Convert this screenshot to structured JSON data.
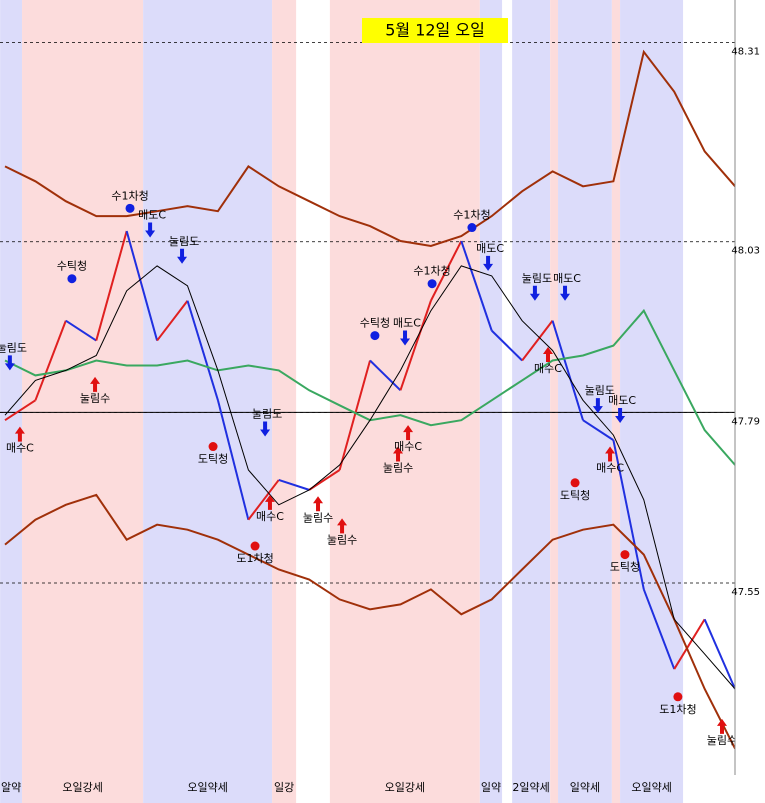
{
  "chart_data": {
    "type": "line",
    "title": "5월 12일 오일",
    "categories": [
      null,
      null,
      null,
      null,
      null,
      null,
      null,
      null,
      null,
      null,
      null,
      null,
      null,
      null,
      null,
      null,
      null,
      null,
      null,
      null,
      null,
      null,
      null,
      null,
      null
    ],
    "ylim": [
      47.28,
      48.37
    ],
    "yticks": [
      48.31,
      48.03,
      47.79,
      47.55
    ],
    "ref_line": 47.79,
    "series": [
      {
        "name": "price",
        "up_color": "#e02020",
        "down_color": "#2030e0",
        "values": [
          47.779,
          47.807,
          47.919,
          47.891,
          48.045,
          47.891,
          47.947,
          47.807,
          47.639,
          47.695,
          47.681,
          47.709,
          47.863,
          47.821,
          47.947,
          48.031,
          47.905,
          47.863,
          47.919,
          47.779,
          47.751,
          47.541,
          47.429,
          47.499,
          47.401
        ]
      },
      {
        "name": "upper",
        "color": "#a0300a",
        "values": [
          48.136,
          48.115,
          48.087,
          48.066,
          48.066,
          48.073,
          48.08,
          48.073,
          48.136,
          48.108,
          48.087,
          48.066,
          48.052,
          48.031,
          48.024,
          48.038,
          48.066,
          48.101,
          48.129,
          48.108,
          48.115,
          48.297,
          48.241,
          48.157,
          48.108
        ]
      },
      {
        "name": "lower",
        "color": "#a0300a",
        "values": [
          47.604,
          47.639,
          47.66,
          47.674,
          47.611,
          47.632,
          47.625,
          47.611,
          47.59,
          47.569,
          47.555,
          47.527,
          47.513,
          47.52,
          47.541,
          47.506,
          47.527,
          47.569,
          47.611,
          47.625,
          47.632,
          47.59,
          47.499,
          47.401,
          47.317
        ]
      },
      {
        "name": "green",
        "color": "#3aa860",
        "values": [
          47.863,
          47.842,
          47.849,
          47.863,
          47.856,
          47.856,
          47.863,
          47.849,
          47.856,
          47.849,
          47.821,
          47.8,
          47.779,
          47.786,
          47.772,
          47.779,
          47.807,
          47.835,
          47.863,
          47.87,
          47.884,
          47.933,
          47.849,
          47.765,
          47.716
        ]
      },
      {
        "name": "black",
        "color": "#000000",
        "values": [
          47.786,
          47.835,
          47.849,
          47.87,
          47.961,
          47.996,
          47.968,
          47.849,
          47.709,
          47.66,
          47.681,
          47.716,
          47.779,
          47.849,
          47.933,
          47.996,
          47.982,
          47.919,
          47.877,
          47.807,
          47.758,
          47.667,
          47.499,
          47.45,
          47.401
        ]
      }
    ],
    "bands": [
      {
        "start": -0.16,
        "end": 0.56,
        "color": "#dcdcfa",
        "label": "알약"
      },
      {
        "start": 0.56,
        "end": 4.54,
        "color": "#fcdcdc",
        "label": "오일강세"
      },
      {
        "start": 4.54,
        "end": 8.78,
        "color": "#dcdcfa",
        "label": "오일약세"
      },
      {
        "start": 8.78,
        "end": 9.57,
        "color": "#fcdcdc",
        "label": "일강"
      },
      {
        "start": 10.68,
        "end": 15.61,
        "color": "#fcdcdc",
        "label": "오일강세"
      },
      {
        "start": 15.61,
        "end": 16.34,
        "color": "#dcdcfa",
        "label": "일약"
      },
      {
        "start": 16.67,
        "end": 17.92,
        "color": "#dcdcfa",
        "label": "2일약세"
      },
      {
        "start": 17.92,
        "end": 18.18,
        "color": "#fcdcdc"
      },
      {
        "start": 18.18,
        "end": 19.95,
        "color": "#dcdcfa",
        "label": "일약세"
      },
      {
        "start": 19.95,
        "end": 20.22,
        "color": "#fcdcdc"
      },
      {
        "start": 20.22,
        "end": 22.29,
        "color": "#dcdcfa",
        "label": "오일약세"
      }
    ],
    "annotations": [
      {
        "text": "수1차청",
        "x": 4.11,
        "value": 48.077,
        "marker": "dot-blue"
      },
      {
        "text": "수틱청",
        "x": 2.2,
        "value": 47.978,
        "marker": "dot-blue"
      },
      {
        "text": "매도C",
        "x": 4.77,
        "value": 48.036,
        "marker": "down"
      },
      {
        "text": "눌림도",
        "x": 5.82,
        "value": 47.999,
        "marker": "down"
      },
      {
        "text": "눌림수",
        "x": 2.96,
        "value": 47.84,
        "marker": "up"
      },
      {
        "text": "매수C",
        "x": 0.49,
        "value": 47.77,
        "marker": "up"
      },
      {
        "text": "눌림도",
        "x": 0.16,
        "value": 47.849,
        "marker": "down"
      },
      {
        "text": "도틱청",
        "x": 6.84,
        "value": 47.742,
        "marker": "dot-red"
      },
      {
        "text": "눌림도",
        "x": 8.55,
        "value": 47.756,
        "marker": "down"
      },
      {
        "text": "매수C",
        "x": 8.71,
        "value": 47.674,
        "marker": "up"
      },
      {
        "text": "눌림수",
        "x": 10.29,
        "value": 47.672,
        "marker": "up"
      },
      {
        "text": "눌림수",
        "x": 11.08,
        "value": 47.641,
        "marker": "up"
      },
      {
        "text": "도1차청",
        "x": 8.22,
        "value": 47.602,
        "marker": "dot-red"
      },
      {
        "text": "수틱청",
        "x": 12.16,
        "value": 47.898,
        "marker": "dot-blue"
      },
      {
        "text": "매도C",
        "x": 13.15,
        "value": 47.884,
        "marker": "down"
      },
      {
        "text": "눌림수",
        "x": 12.92,
        "value": 47.742,
        "marker": "up"
      },
      {
        "text": "매수C",
        "x": 13.25,
        "value": 47.772,
        "marker": "up"
      },
      {
        "text": "수1차청",
        "x": 14.04,
        "value": 47.971,
        "marker": "dot-blue"
      },
      {
        "text": "수1차청",
        "x": 15.35,
        "value": 48.05,
        "marker": "dot-blue"
      },
      {
        "text": "매도C",
        "x": 15.88,
        "value": 47.989,
        "marker": "down"
      },
      {
        "text": "눌림도",
        "x": 17.42,
        "value": 47.947,
        "marker": "down"
      },
      {
        "text": "매도C",
        "x": 18.41,
        "value": 47.947,
        "marker": "down"
      },
      {
        "text": "매수C",
        "x": 17.85,
        "value": 47.882,
        "marker": "up"
      },
      {
        "text": "도틱청",
        "x": 18.74,
        "value": 47.691,
        "marker": "dot-red"
      },
      {
        "text": "매수C",
        "x": 19.89,
        "value": 47.742,
        "marker": "up"
      },
      {
        "text": "매도C",
        "x": 20.22,
        "value": 47.775,
        "marker": "down"
      },
      {
        "text": "도틱청",
        "x": 20.38,
        "value": 47.59,
        "marker": "dot-red"
      },
      {
        "text": "도1차청",
        "x": 22.12,
        "value": 47.39,
        "marker": "dot-red"
      },
      {
        "text": "눌림수",
        "x": 23.57,
        "value": 47.359,
        "marker": "up"
      },
      {
        "text": "눌림도",
        "x": 19.49,
        "value": 47.789,
        "marker": "down"
      }
    ]
  }
}
